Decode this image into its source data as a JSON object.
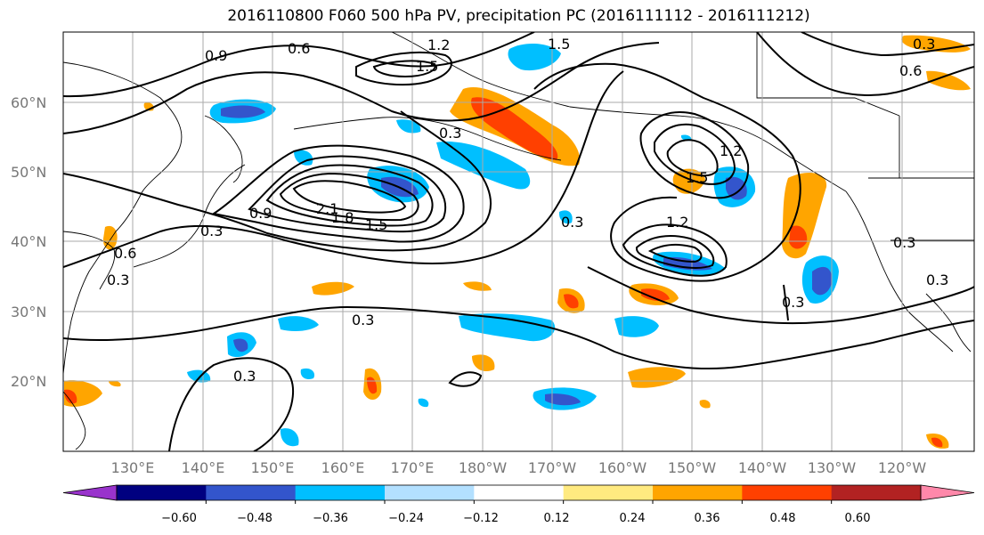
{
  "title": "2016110800 F060 500 hPa PV, precipitation PC (2016111112 - 2016111212)",
  "map": {
    "lat_labels": [
      "60°N",
      "50°N",
      "40°N",
      "30°N",
      "20°N"
    ],
    "lon_labels": [
      "130°E",
      "140°E",
      "150°E",
      "160°E",
      "170°E",
      "180°W",
      "170°W",
      "160°W",
      "150°W",
      "140°W",
      "130°W",
      "120°W"
    ],
    "contour_labels": [
      "0.6",
      "1.2",
      "1.5",
      "0.9",
      "0.3",
      "0.6",
      "0.3",
      "1.5",
      "1.2",
      "1.5",
      "0.3",
      "1.8",
      "2.1",
      "1.5",
      "0.9",
      "0.3",
      "0.6",
      "0.3",
      "1.2",
      "0.3",
      "0.3",
      "0.3",
      "0.3",
      "0.3"
    ]
  },
  "colorbar": {
    "ticks": [
      "−0.60",
      "−0.48",
      "−0.36",
      "−0.24",
      "−0.12",
      "0.12",
      "0.24",
      "0.36",
      "0.48",
      "0.60"
    ],
    "colors": [
      "#9933cc",
      "#000080",
      "#3355cc",
      "#00bfff",
      "#b3e0ff",
      "#ffffff",
      "#ffea80",
      "#ffa500",
      "#ff4000",
      "#b22222",
      "#ff88aa"
    ]
  },
  "colors": {
    "land_outline": "#000000",
    "grid": "#aaaaaa",
    "neg_shades": [
      "#b3e0ff",
      "#00bfff",
      "#3355cc",
      "#000080"
    ],
    "pos_shades": [
      "#ffea80",
      "#ffa500",
      "#ff4000",
      "#b22222"
    ]
  }
}
